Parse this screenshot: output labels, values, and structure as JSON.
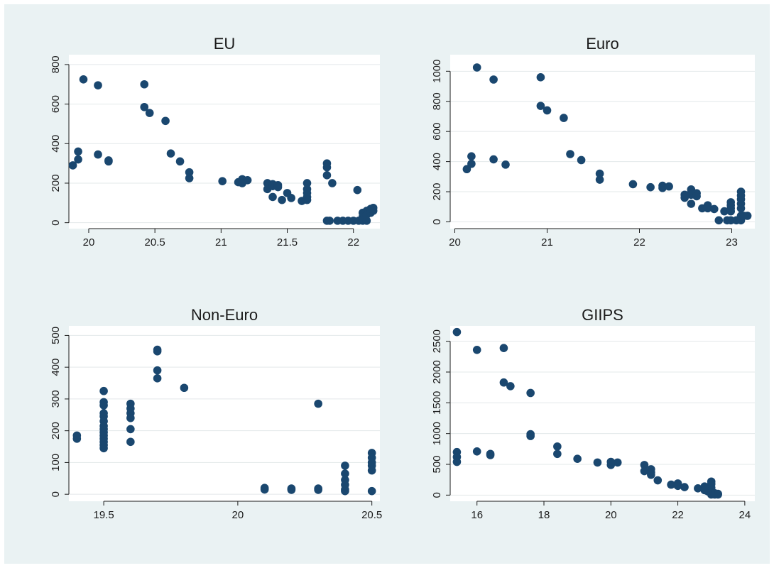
{
  "chart_data": [
    {
      "type": "scatter",
      "title": "EU",
      "xlim": [
        19.85,
        22.2
      ],
      "ylim": [
        -30,
        850
      ],
      "xticks": [
        20,
        20.5,
        21,
        21.5,
        22
      ],
      "xtick_labels": [
        "20",
        "20.5",
        "21",
        "21.5",
        "22"
      ],
      "yticks": [
        0,
        200,
        400,
        600,
        800
      ],
      "ytick_labels": [
        "0",
        "200",
        "400",
        "600",
        "800"
      ],
      "grid": true,
      "color": "#1a476f",
      "points": [
        [
          19.88,
          290
        ],
        [
          19.92,
          320
        ],
        [
          19.92,
          360
        ],
        [
          19.96,
          725
        ],
        [
          20.07,
          695
        ],
        [
          20.07,
          345
        ],
        [
          20.15,
          315
        ],
        [
          20.15,
          310
        ],
        [
          20.42,
          700
        ],
        [
          20.42,
          585
        ],
        [
          20.46,
          555
        ],
        [
          20.58,
          515
        ],
        [
          20.62,
          350
        ],
        [
          20.69,
          310
        ],
        [
          20.76,
          255
        ],
        [
          20.76,
          225
        ],
        [
          21.01,
          210
        ],
        [
          21.13,
          205
        ],
        [
          21.16,
          220
        ],
        [
          21.16,
          200
        ],
        [
          21.2,
          215
        ],
        [
          21.35,
          200
        ],
        [
          21.35,
          170
        ],
        [
          21.39,
          195
        ],
        [
          21.39,
          185
        ],
        [
          21.39,
          130
        ],
        [
          21.43,
          190
        ],
        [
          21.43,
          180
        ],
        [
          21.46,
          115
        ],
        [
          21.5,
          150
        ],
        [
          21.53,
          125
        ],
        [
          21.61,
          110
        ],
        [
          21.65,
          200
        ],
        [
          21.65,
          170
        ],
        [
          21.65,
          150
        ],
        [
          21.65,
          130
        ],
        [
          21.65,
          115
        ],
        [
          21.8,
          300
        ],
        [
          21.8,
          280
        ],
        [
          21.8,
          240
        ],
        [
          21.84,
          200
        ],
        [
          21.8,
          10
        ],
        [
          21.82,
          10
        ],
        [
          21.88,
          10
        ],
        [
          21.92,
          10
        ],
        [
          21.96,
          10
        ],
        [
          22.0,
          10
        ],
        [
          22.03,
          165
        ],
        [
          22.04,
          10
        ],
        [
          22.07,
          10
        ],
        [
          22.07,
          30
        ],
        [
          22.07,
          50
        ],
        [
          22.1,
          60
        ],
        [
          22.1,
          40
        ],
        [
          22.1,
          10
        ],
        [
          22.13,
          70
        ],
        [
          22.13,
          50
        ],
        [
          22.15,
          75
        ],
        [
          22.15,
          60
        ]
      ]
    },
    {
      "type": "scatter",
      "title": "Euro",
      "xlim": [
        19.95,
        23.25
      ],
      "ylim": [
        -45,
        1110
      ],
      "xticks": [
        20,
        21,
        22,
        23
      ],
      "xtick_labels": [
        "20",
        "21",
        "22",
        "23"
      ],
      "yticks": [
        0,
        200,
        400,
        600,
        800,
        1000
      ],
      "ytick_labels": [
        "0",
        "200",
        "400",
        "600",
        "800",
        "1000"
      ],
      "grid": true,
      "color": "#1a476f",
      "points": [
        [
          20.13,
          350
        ],
        [
          20.18,
          385
        ],
        [
          20.18,
          435
        ],
        [
          20.24,
          1025
        ],
        [
          20.42,
          945
        ],
        [
          20.42,
          415
        ],
        [
          20.55,
          380
        ],
        [
          20.93,
          960
        ],
        [
          20.93,
          770
        ],
        [
          21.0,
          740
        ],
        [
          21.18,
          690
        ],
        [
          21.25,
          450
        ],
        [
          21.37,
          410
        ],
        [
          21.57,
          320
        ],
        [
          21.57,
          280
        ],
        [
          21.93,
          250
        ],
        [
          22.12,
          230
        ],
        [
          22.25,
          240
        ],
        [
          22.25,
          225
        ],
        [
          22.32,
          235
        ],
        [
          22.49,
          180
        ],
        [
          22.49,
          160
        ],
        [
          22.56,
          215
        ],
        [
          22.56,
          195
        ],
        [
          22.56,
          180
        ],
        [
          22.56,
          120
        ],
        [
          22.62,
          190
        ],
        [
          22.62,
          170
        ],
        [
          22.68,
          90
        ],
        [
          22.74,
          110
        ],
        [
          22.74,
          90
        ],
        [
          22.81,
          85
        ],
        [
          22.86,
          10
        ],
        [
          22.92,
          70
        ],
        [
          22.95,
          10
        ],
        [
          22.99,
          130
        ],
        [
          22.99,
          110
        ],
        [
          22.99,
          90
        ],
        [
          22.99,
          70
        ],
        [
          22.99,
          10
        ],
        [
          23.05,
          10
        ],
        [
          23.1,
          200
        ],
        [
          23.1,
          175
        ],
        [
          23.1,
          150
        ],
        [
          23.1,
          120
        ],
        [
          23.1,
          90
        ],
        [
          23.1,
          40
        ],
        [
          23.1,
          10
        ],
        [
          23.13,
          40
        ],
        [
          23.17,
          40
        ]
      ]
    },
    {
      "type": "scatter",
      "title": "Non-Euro",
      "xlim": [
        19.37,
        20.53
      ],
      "ylim": [
        -22,
        530
      ],
      "xticks": [
        19.5,
        20,
        20.5
      ],
      "xtick_labels": [
        "19.5",
        "20",
        "20.5"
      ],
      "yticks": [
        0,
        100,
        200,
        300,
        400,
        500
      ],
      "ytick_labels": [
        "0",
        "100",
        "200",
        "300",
        "400",
        "500"
      ],
      "grid": true,
      "color": "#1a476f",
      "points": [
        [
          19.4,
          185
        ],
        [
          19.4,
          175
        ],
        [
          19.5,
          325
        ],
        [
          19.5,
          290
        ],
        [
          19.5,
          280
        ],
        [
          19.5,
          255
        ],
        [
          19.5,
          245
        ],
        [
          19.5,
          230
        ],
        [
          19.5,
          215
        ],
        [
          19.5,
          205
        ],
        [
          19.5,
          195
        ],
        [
          19.5,
          185
        ],
        [
          19.5,
          175
        ],
        [
          19.5,
          165
        ],
        [
          19.5,
          155
        ],
        [
          19.5,
          145
        ],
        [
          19.6,
          285
        ],
        [
          19.6,
          270
        ],
        [
          19.6,
          255
        ],
        [
          19.6,
          240
        ],
        [
          19.6,
          205
        ],
        [
          19.6,
          165
        ],
        [
          19.7,
          455
        ],
        [
          19.7,
          450
        ],
        [
          19.7,
          390
        ],
        [
          19.7,
          365
        ],
        [
          19.8,
          335
        ],
        [
          20.1,
          20
        ],
        [
          20.1,
          15
        ],
        [
          20.2,
          18
        ],
        [
          20.2,
          14
        ],
        [
          20.3,
          285
        ],
        [
          20.3,
          18
        ],
        [
          20.3,
          14
        ],
        [
          20.4,
          90
        ],
        [
          20.4,
          65
        ],
        [
          20.4,
          45
        ],
        [
          20.4,
          30
        ],
        [
          20.4,
          15
        ],
        [
          20.4,
          10
        ],
        [
          20.5,
          130
        ],
        [
          20.5,
          115
        ],
        [
          20.5,
          100
        ],
        [
          20.5,
          90
        ],
        [
          20.5,
          75
        ],
        [
          20.5,
          10
        ]
      ]
    },
    {
      "type": "scatter",
      "title": "GIIPS",
      "xlim": [
        15.2,
        24.3
      ],
      "ylim": [
        -100,
        2750
      ],
      "xticks": [
        16,
        18,
        20,
        22,
        24
      ],
      "xtick_labels": [
        "16",
        "18",
        "20",
        "22",
        "24"
      ],
      "yticks": [
        0,
        500,
        1000,
        1500,
        2000,
        2500
      ],
      "ytick_labels": [
        "0",
        "500",
        "1000",
        "1500",
        "2000",
        "2500"
      ],
      "grid": true,
      "color": "#1a476f",
      "points": [
        [
          15.4,
          2650
        ],
        [
          15.4,
          700
        ],
        [
          15.4,
          620
        ],
        [
          15.4,
          540
        ],
        [
          16.0,
          2360
        ],
        [
          16.0,
          710
        ],
        [
          16.4,
          670
        ],
        [
          16.4,
          650
        ],
        [
          16.8,
          2390
        ],
        [
          16.8,
          1830
        ],
        [
          17.0,
          1770
        ],
        [
          17.6,
          1660
        ],
        [
          17.6,
          990
        ],
        [
          17.6,
          960
        ],
        [
          18.4,
          790
        ],
        [
          18.4,
          670
        ],
        [
          19.0,
          590
        ],
        [
          19.6,
          530
        ],
        [
          20.0,
          540
        ],
        [
          20.0,
          490
        ],
        [
          20.2,
          530
        ],
        [
          21.0,
          490
        ],
        [
          21.0,
          390
        ],
        [
          21.2,
          420
        ],
        [
          21.2,
          370
        ],
        [
          21.2,
          330
        ],
        [
          21.4,
          240
        ],
        [
          21.8,
          170
        ],
        [
          22.0,
          190
        ],
        [
          22.0,
          150
        ],
        [
          22.2,
          130
        ],
        [
          22.6,
          110
        ],
        [
          22.8,
          140
        ],
        [
          22.8,
          80
        ],
        [
          22.9,
          60
        ],
        [
          23.0,
          220
        ],
        [
          23.0,
          180
        ],
        [
          23.0,
          120
        ],
        [
          23.0,
          80
        ],
        [
          23.0,
          40
        ],
        [
          23.0,
          10
        ],
        [
          23.1,
          30
        ],
        [
          23.1,
          10
        ],
        [
          23.2,
          20
        ],
        [
          23.2,
          10
        ]
      ]
    }
  ]
}
